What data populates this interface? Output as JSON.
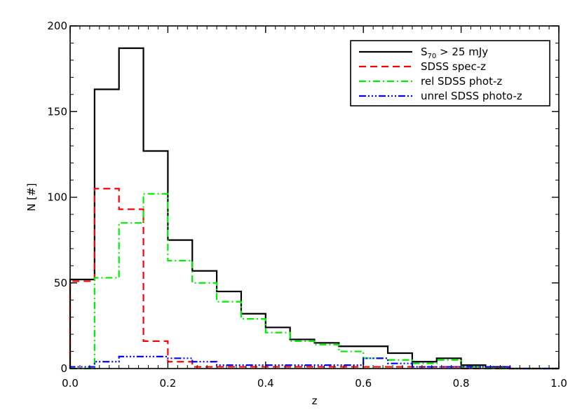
{
  "chart_data": {
    "type": "histogram",
    "xlabel": "z",
    "ylabel": "N [#]",
    "xlim": [
      0.0,
      1.0
    ],
    "ylim": [
      0,
      200
    ],
    "grid": false,
    "legend_position": "top-right",
    "bin_edges": [
      0.0,
      0.05,
      0.1,
      0.15,
      0.2,
      0.25,
      0.3,
      0.35,
      0.4,
      0.45,
      0.5,
      0.55,
      0.6,
      0.65,
      0.7,
      0.75,
      0.8,
      0.85,
      0.9,
      0.95,
      1.0
    ],
    "xticks": [
      "0.0",
      "0.2",
      "0.4",
      "0.6",
      "0.8",
      "1.0"
    ],
    "yticks": [
      "0",
      "50",
      "100",
      "150",
      "200"
    ],
    "series": [
      {
        "name": "S70 > 25 mJy",
        "legend_main": "S",
        "legend_sub": "70",
        "legend_rest": " > 25 mJy",
        "color": "#000000",
        "style": "solid",
        "values": [
          52,
          163,
          187,
          127,
          75,
          57,
          45,
          32,
          24,
          17,
          15,
          13,
          13,
          9,
          4,
          6,
          2,
          1,
          0,
          0
        ]
      },
      {
        "name": "SDSS spec-z",
        "color": "#ff0000",
        "style": "dashed",
        "values": [
          51,
          105,
          93,
          16,
          4,
          1,
          1,
          1,
          1,
          1,
          1,
          1,
          1,
          1,
          1,
          1,
          0,
          0,
          0,
          0
        ]
      },
      {
        "name": "rel SDSS phot-z",
        "color": "#00ee00",
        "style": "dashdot",
        "values": [
          0,
          53,
          85,
          102,
          63,
          50,
          39,
          29,
          21,
          16,
          14,
          10,
          6,
          5,
          3,
          5,
          1,
          0,
          0,
          0
        ]
      },
      {
        "name": "unrel SDSS photo-z",
        "color": "#0000ff",
        "style": "dashdotdotdot",
        "values": [
          1,
          4,
          7,
          7,
          6,
          4,
          2,
          2,
          2,
          2,
          2,
          2,
          6,
          3,
          1,
          1,
          1,
          1,
          0,
          0
        ]
      }
    ]
  }
}
